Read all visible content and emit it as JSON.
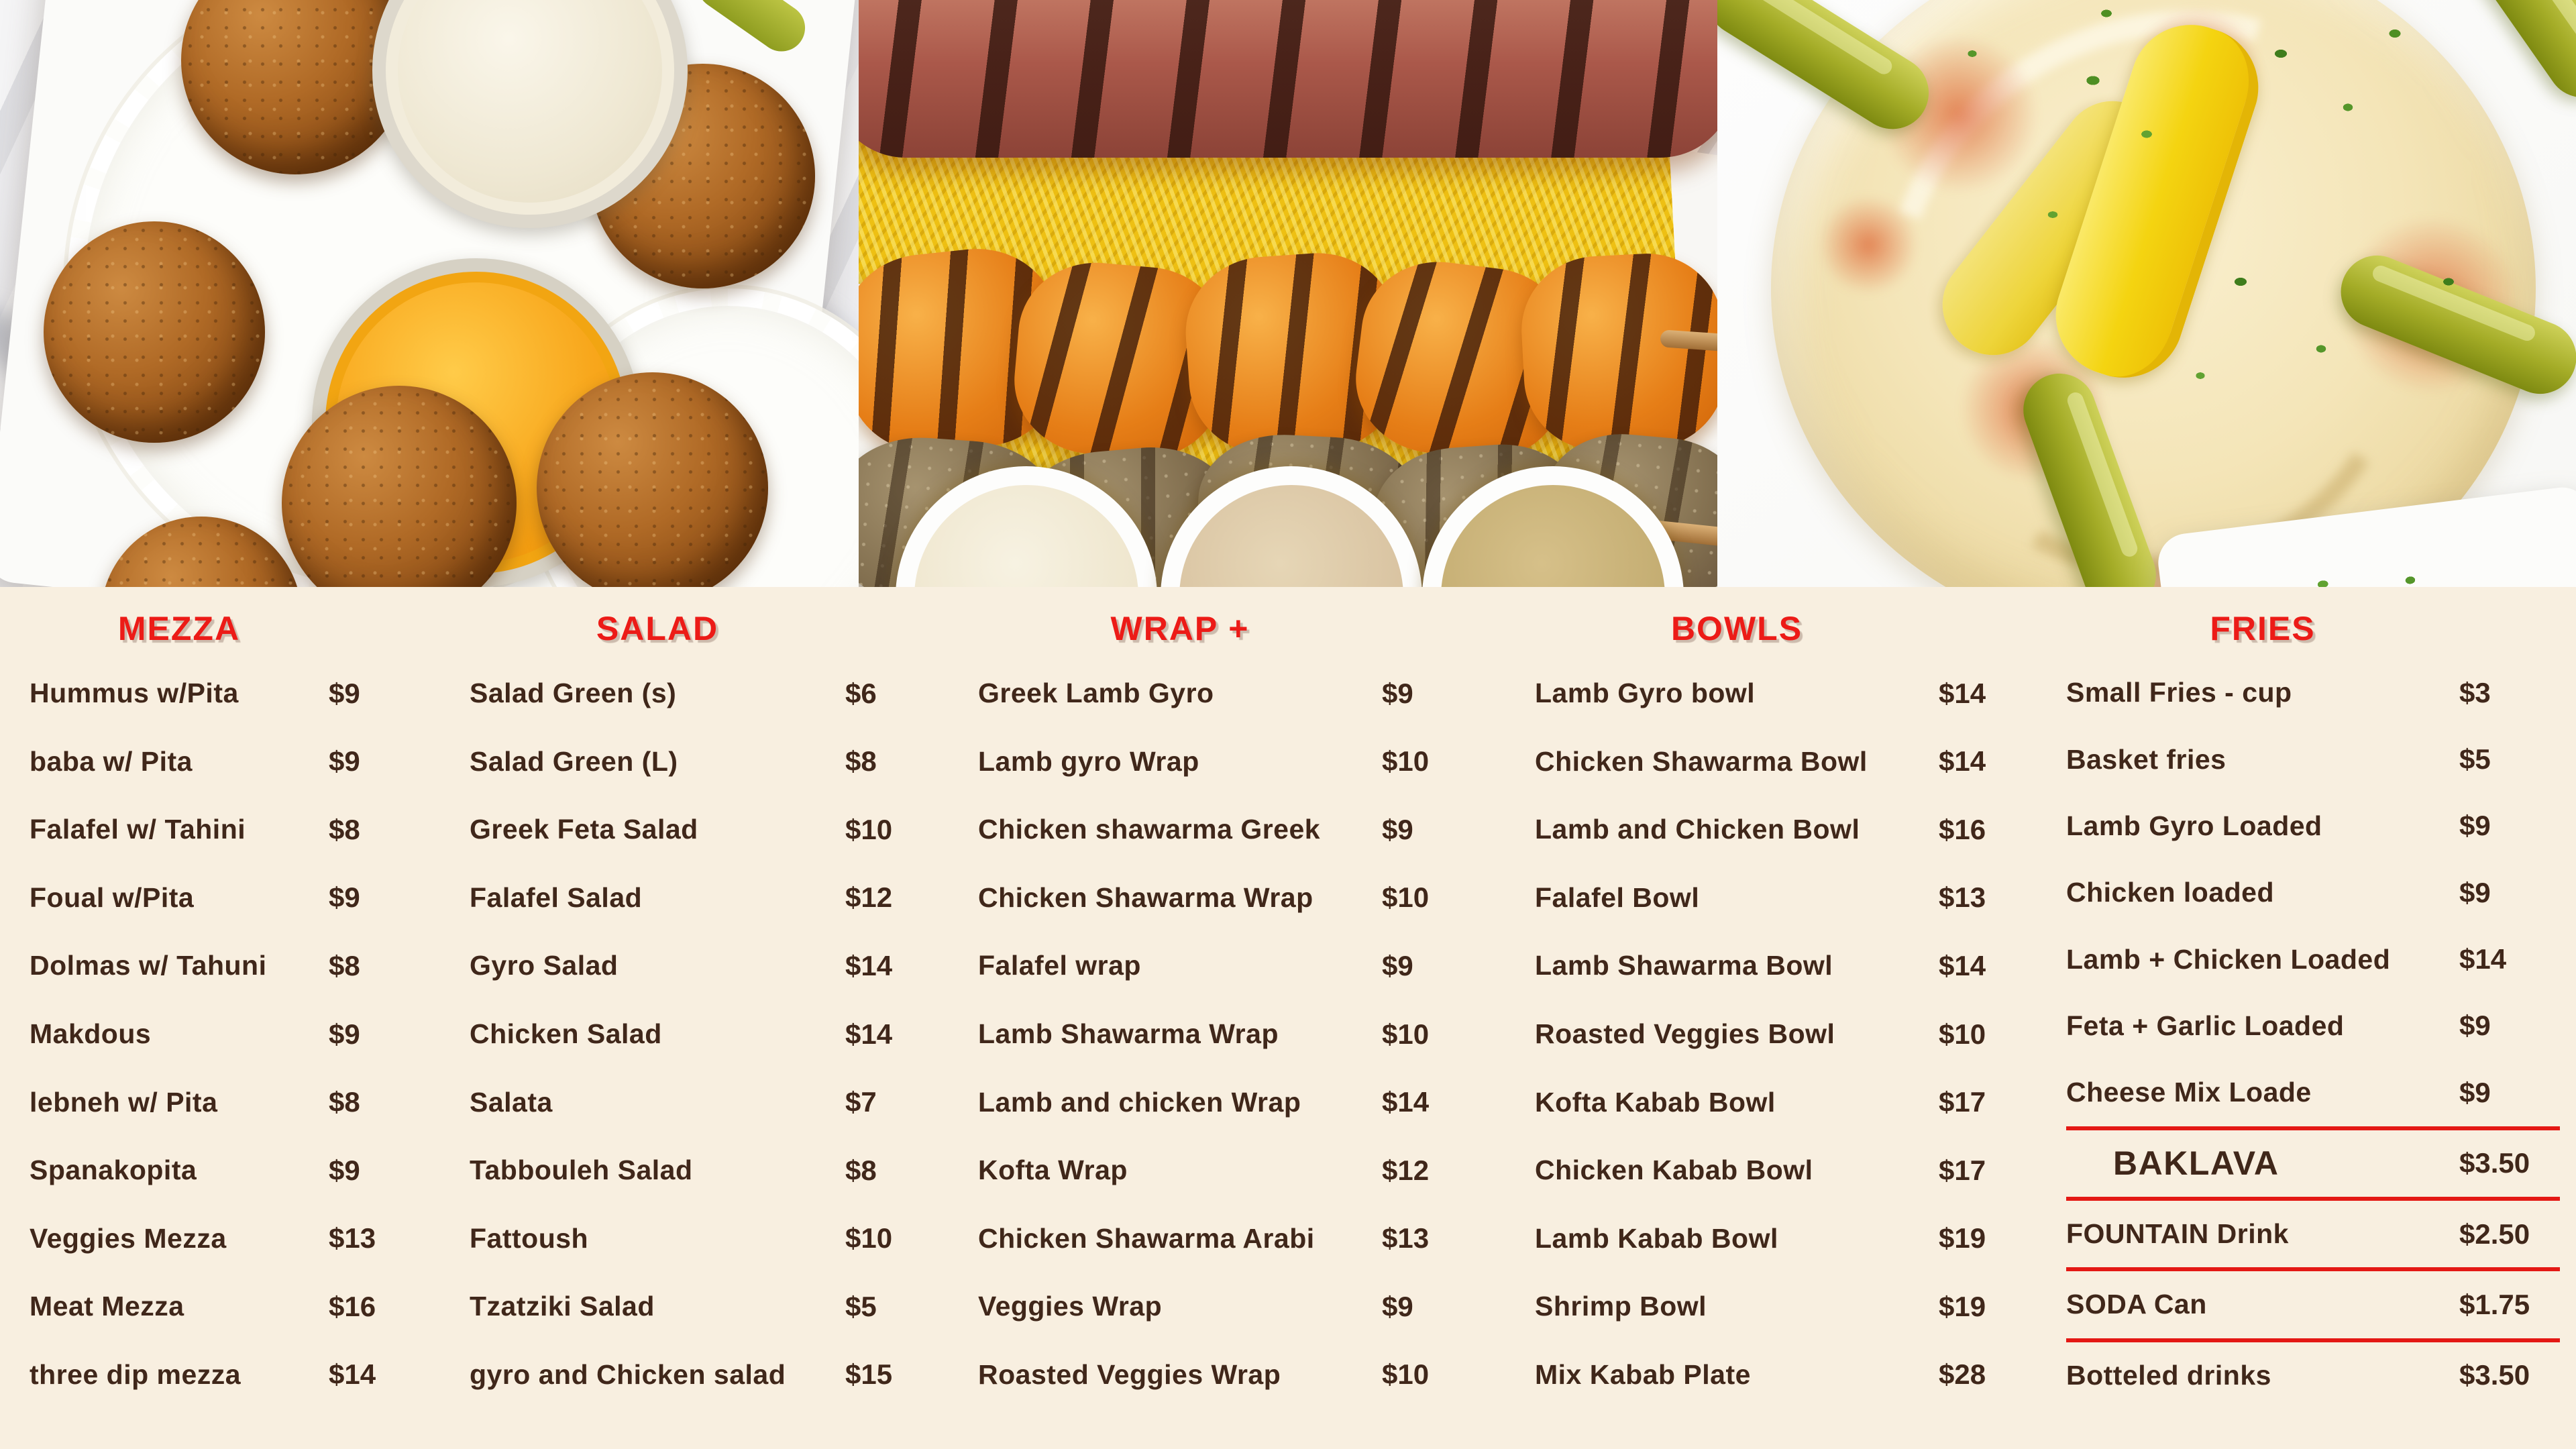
{
  "colors": {
    "background": "#f8efe0",
    "section_header": "#ec1b17",
    "item_text": "#40271a",
    "divider_line": "#e41814"
  },
  "menu": {
    "sections": [
      {
        "title": "MEZZA",
        "items": [
          {
            "name": "Hummus w/Pita",
            "price": "$9"
          },
          {
            "name": "baba w/ Pita",
            "price": "$9"
          },
          {
            "name": "Falafel w/ Tahini",
            "price": "$8"
          },
          {
            "name": "Foual w/Pita",
            "price": "$9"
          },
          {
            "name": "Dolmas w/ Tahuni",
            "price": "$8"
          },
          {
            "name": "Makdous",
            "price": "$9"
          },
          {
            "name": "lebneh w/ Pita",
            "price": "$8"
          },
          {
            "name": "Spanakopita",
            "price": "$9"
          },
          {
            "name": "Veggies Mezza",
            "price": "$13"
          },
          {
            "name": "Meat Mezza",
            "price": "$16"
          },
          {
            "name": "three dip mezza",
            "price": "$14"
          }
        ]
      },
      {
        "title": "SALAD",
        "items": [
          {
            "name": "Salad Green (s)",
            "price": "$6"
          },
          {
            "name": "Salad Green  (L)",
            "price": "$8"
          },
          {
            "name": "Greek Feta Salad",
            "price": "$10"
          },
          {
            "name": "Falafel Salad",
            "price": "$12"
          },
          {
            "name": "Gyro Salad",
            "price": "$14"
          },
          {
            "name": "Chicken Salad",
            "price": "$14"
          },
          {
            "name": "Salata",
            "price": "$7"
          },
          {
            "name": "Tabbouleh Salad",
            "price": "$8"
          },
          {
            "name": "Fattoush",
            "price": "$10"
          },
          {
            "name": "Tzatziki Salad",
            "price": "$5"
          },
          {
            "name": "gyro and Chicken salad",
            "price": "$15"
          }
        ]
      },
      {
        "title": "WRAP +",
        "items": [
          {
            "name": "Greek Lamb Gyro",
            "price": "$9"
          },
          {
            "name": "Lamb gyro Wrap",
            "price": "$10"
          },
          {
            "name": "Chicken shawarma Greek",
            "price": "$9"
          },
          {
            "name": "Chicken Shawarma Wrap",
            "price": "$10"
          },
          {
            "name": "Falafel wrap",
            "price": "$9"
          },
          {
            "name": "Lamb Shawarma Wrap",
            "price": "$10"
          },
          {
            "name": "Lamb and chicken Wrap",
            "price": "$14"
          },
          {
            "name": "Kofta Wrap",
            "price": "$12"
          },
          {
            "name": "Chicken Shawarma Arabi",
            "price": "$13"
          },
          {
            "name": "Veggies Wrap",
            "price": "$9"
          },
          {
            "name": "Roasted Veggies Wrap",
            "price": "$10"
          }
        ]
      },
      {
        "title": "BOWLS",
        "items": [
          {
            "name": "Lamb Gyro bowl",
            "price": "$14"
          },
          {
            "name": "Chicken Shawarma Bowl",
            "price": "$14"
          },
          {
            "name": "Lamb and Chicken Bowl",
            "price": "$16"
          },
          {
            "name": "Falafel Bowl",
            "price": "$13"
          },
          {
            "name": "Lamb Shawarma Bowl",
            "price": "$14"
          },
          {
            "name": "Roasted Veggies Bowl",
            "price": "$10"
          },
          {
            "name": "Kofta Kabab Bowl",
            "price": "$17"
          },
          {
            "name": "Chicken Kabab Bowl",
            "price": "$17"
          },
          {
            "name": "Lamb Kabab Bowl",
            "price": "$19"
          },
          {
            "name": "Shrimp Bowl",
            "price": "$19"
          },
          {
            "name": "Mix Kabab Plate",
            "price": "$28"
          }
        ]
      },
      {
        "title": "FRIES",
        "items": [
          {
            "name": "Small Fries - cup",
            "price": "$3"
          },
          {
            "name": "Basket fries",
            "price": "$5"
          },
          {
            "name": "Lamb Gyro Loaded",
            "price": "$9"
          },
          {
            "name": "Chicken loaded",
            "price": "$9"
          },
          {
            "name": "Lamb + Chicken Loaded",
            "price": "$14"
          },
          {
            "name": "Feta + Garlic Loaded",
            "price": "$9"
          },
          {
            "name": "Cheese Mix Loade",
            "price": "$9"
          }
        ],
        "specials": [
          {
            "name": "BAKLAVA",
            "price": "$3.50"
          },
          {
            "name": "FOUNTAIN Drink",
            "price": "$2.50"
          },
          {
            "name": "SODA Can",
            "price": "$1.75"
          },
          {
            "name": "Botteled drinks",
            "price": "$3.50"
          }
        ]
      }
    ]
  }
}
